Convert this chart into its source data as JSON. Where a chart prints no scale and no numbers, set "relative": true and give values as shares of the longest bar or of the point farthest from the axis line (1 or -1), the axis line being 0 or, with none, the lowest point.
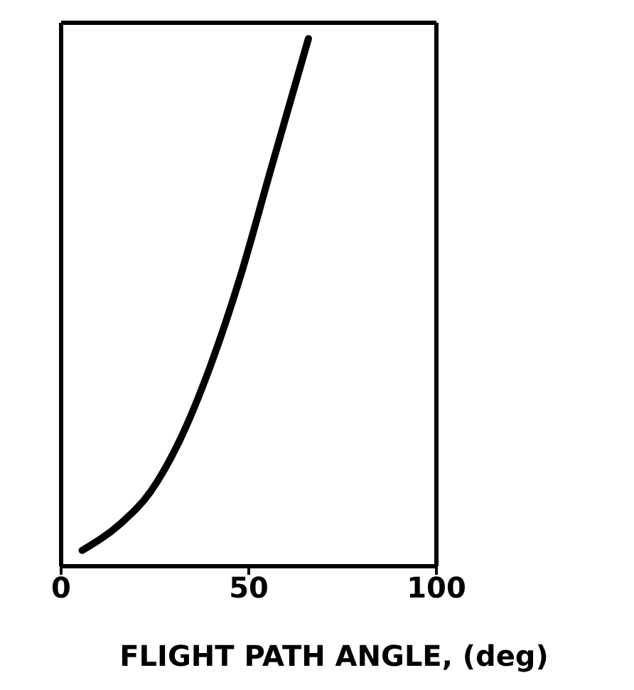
{
  "chart_data": {
    "type": "line",
    "xlabel": "FLIGHT PATH ANGLE, (deg)",
    "relative": true,
    "x": [
      5.6,
      15.7,
      23.7,
      31.7,
      39.8,
      47.8,
      55.8,
      65.9
    ],
    "xlim": [
      0,
      100
    ],
    "xticks": [
      0,
      50,
      100
    ],
    "series": [
      {
        "color": "#000000",
        "values": [
          0.03,
          0.08,
          0.14,
          0.24,
          0.38,
          0.55,
          0.75,
          1
        ]
      }
    ],
    "marker": "none",
    "line_style": "solid"
  }
}
